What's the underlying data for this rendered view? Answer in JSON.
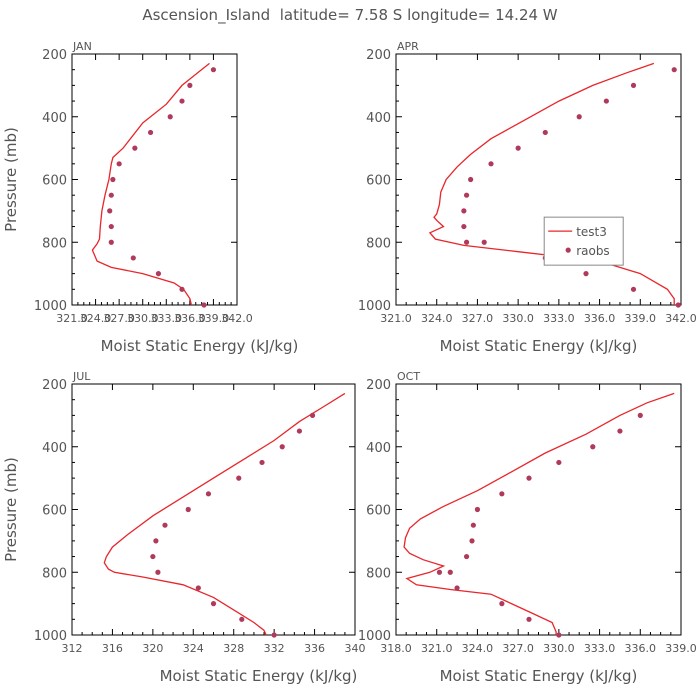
{
  "figure_title": "Ascension_Island  latitude= 7.58 S longitude= 14.24 W",
  "styles": {
    "model_color": "#e8262b",
    "obs_color": "#b03a5b",
    "frame_color": "#000000",
    "text_color": "#555555"
  },
  "chart_data": [
    {
      "type": "line",
      "panel_label": "JAN",
      "xlabel": "Moist Static Energy (kJ/kg)",
      "ylabel": "Pressure (mb)",
      "xlim": [
        321.0,
        342.0
      ],
      "ylim": [
        1000,
        200
      ],
      "xticks": [
        321.0,
        324.0,
        327.0,
        330.0,
        333.0,
        336.0,
        339.0,
        342.0
      ],
      "xtick_labels": [
        "321.0",
        "324.0",
        "327.0",
        "330.0",
        "333.0",
        "336.0",
        "339.0",
        "342.0"
      ],
      "yticks": [
        200,
        400,
        600,
        800,
        1000
      ],
      "ytick_labels": [
        "200",
        "400",
        "600",
        "800",
        "1000"
      ],
      "series": [
        {
          "name": "test3",
          "kind": "line",
          "x": [
            338.5,
            337.0,
            335.0,
            333.0,
            330.0,
            327.5,
            326.2,
            326.0,
            325.7,
            325.2,
            324.8,
            324.6,
            324.5,
            324.2,
            323.6,
            324.2,
            326.0,
            330.0,
            334.0,
            335.2,
            336.0,
            336.2
          ],
          "y": [
            230,
            260,
            300,
            360,
            420,
            500,
            530,
            550,
            600,
            650,
            700,
            750,
            790,
            805,
            825,
            860,
            880,
            900,
            930,
            950,
            980,
            1000
          ]
        },
        {
          "name": "raobs",
          "kind": "scatter",
          "x": [
            339.0,
            336.0,
            335.0,
            333.5,
            331.0,
            329.0,
            327.0,
            326.2,
            326.0,
            325.8,
            326.0,
            326.0,
            328.8,
            332.0,
            335.0,
            337.8
          ],
          "y": [
            250,
            300,
            350,
            400,
            450,
            500,
            550,
            600,
            650,
            700,
            750,
            800,
            850,
            900,
            950,
            1000
          ]
        }
      ]
    },
    {
      "type": "line",
      "panel_label": "APR",
      "xlabel": "Moist Static Energy (kJ/kg)",
      "ylabel": "",
      "xlim": [
        321.0,
        342.0
      ],
      "ylim": [
        1000,
        200
      ],
      "xticks": [
        321.0,
        324.0,
        327.0,
        330.0,
        333.0,
        336.0,
        339.0,
        342.0
      ],
      "xtick_labels": [
        "321.0",
        "324.0",
        "327.0",
        "330.0",
        "333.0",
        "336.0",
        "339.0",
        "342.0"
      ],
      "yticks": [
        200,
        400,
        600,
        800,
        1000
      ],
      "ytick_labels": [
        "200",
        "400",
        "600",
        "800",
        "1000"
      ],
      "legend": {
        "position": "right",
        "entries": [
          "test3",
          "raobs"
        ]
      },
      "series": [
        {
          "name": "test3",
          "kind": "line",
          "x": [
            340.0,
            338.0,
            335.5,
            333.0,
            330.5,
            328.0,
            326.5,
            325.5,
            324.7,
            324.3,
            324.2,
            324.0,
            323.8,
            324.0,
            324.5,
            323.5,
            323.9,
            326.0,
            330.0,
            336.0,
            339.0,
            341.0,
            341.5,
            341.5
          ],
          "y": [
            230,
            260,
            300,
            350,
            410,
            470,
            520,
            560,
            600,
            640,
            680,
            710,
            720,
            730,
            750,
            770,
            790,
            810,
            830,
            860,
            900,
            950,
            980,
            1000
          ]
        },
        {
          "name": "raobs",
          "kind": "scatter",
          "x": [
            341.5,
            338.5,
            336.5,
            334.5,
            332.0,
            330.0,
            328.0,
            326.5,
            326.2,
            326.0,
            326.0,
            326.2,
            327.5,
            332.0,
            335.0,
            338.5,
            341.8
          ],
          "y": [
            250,
            300,
            350,
            400,
            450,
            500,
            550,
            600,
            650,
            700,
            750,
            800,
            800,
            850,
            900,
            950,
            1000
          ]
        }
      ]
    },
    {
      "type": "line",
      "panel_label": "JUL",
      "xlabel": "Moist Static Energy (kJ/kg)",
      "ylabel": "Pressure (mb)",
      "xlim": [
        312,
        340
      ],
      "ylim": [
        1000,
        200
      ],
      "xticks": [
        312,
        316,
        320,
        324,
        328,
        332,
        336,
        340
      ],
      "xtick_labels": [
        "312",
        "316",
        "320",
        "324",
        "328",
        "332",
        "336",
        "340"
      ],
      "yticks": [
        200,
        400,
        600,
        800,
        1000
      ],
      "ytick_labels": [
        "200",
        "400",
        "600",
        "800",
        "1000"
      ],
      "series": [
        {
          "name": "test3",
          "kind": "line",
          "x": [
            339.0,
            337.0,
            334.5,
            332.0,
            329.0,
            326.0,
            323.0,
            320.0,
            317.5,
            316.0,
            315.4,
            315.2,
            315.6,
            316.2,
            319.0,
            323.0,
            326.0,
            328.0,
            330.0,
            331.0,
            331.2
          ],
          "y": [
            230,
            270,
            320,
            380,
            440,
            500,
            560,
            620,
            680,
            720,
            750,
            770,
            790,
            800,
            815,
            840,
            880,
            920,
            960,
            985,
            1000
          ]
        },
        {
          "name": "raobs",
          "kind": "scatter",
          "x": [
            335.8,
            334.5,
            332.8,
            330.8,
            328.5,
            325.5,
            323.5,
            321.2,
            320.3,
            320.0,
            320.5,
            324.5,
            326.0,
            328.8,
            332.0
          ],
          "y": [
            300,
            350,
            400,
            450,
            500,
            550,
            600,
            650,
            700,
            750,
            800,
            850,
            900,
            950,
            1000
          ]
        }
      ]
    },
    {
      "type": "line",
      "panel_label": "OCT",
      "xlabel": "Moist Static Energy (kJ/kg)",
      "ylabel": "",
      "xlim": [
        318.0,
        339.0
      ],
      "ylim": [
        1000,
        200
      ],
      "xticks": [
        318.0,
        321.0,
        324.0,
        327.0,
        330.0,
        333.0,
        336.0,
        339.0
      ],
      "xtick_labels": [
        "318.0",
        "321.0",
        "324.0",
        "327.0",
        "330.0",
        "333.0",
        "336.0",
        "339.0"
      ],
      "yticks": [
        200,
        400,
        600,
        800,
        1000
      ],
      "ytick_labels": [
        "200",
        "400",
        "600",
        "800",
        "1000"
      ],
      "series": [
        {
          "name": "test3",
          "kind": "line",
          "x": [
            338.5,
            336.5,
            334.5,
            332.0,
            329.0,
            326.5,
            324.0,
            321.5,
            319.8,
            319.0,
            318.7,
            318.6,
            319.0,
            320.0,
            321.5,
            320.5,
            318.8,
            319.5,
            322.0,
            325.0,
            326.5,
            328.0,
            329.5,
            329.8,
            329.8
          ],
          "y": [
            230,
            260,
            300,
            360,
            420,
            480,
            540,
            590,
            630,
            660,
            690,
            720,
            740,
            760,
            780,
            800,
            820,
            840,
            855,
            870,
            900,
            930,
            960,
            990,
            1000
          ]
        },
        {
          "name": "raobs",
          "kind": "scatter",
          "x": [
            336.0,
            334.5,
            332.5,
            330.0,
            327.8,
            325.8,
            324.0,
            323.7,
            323.6,
            323.2,
            322.0,
            321.2,
            322.5,
            325.8,
            327.8,
            330.0
          ],
          "y": [
            300,
            350,
            400,
            450,
            500,
            550,
            600,
            650,
            700,
            750,
            800,
            800,
            850,
            900,
            950,
            1000
          ]
        }
      ]
    }
  ]
}
